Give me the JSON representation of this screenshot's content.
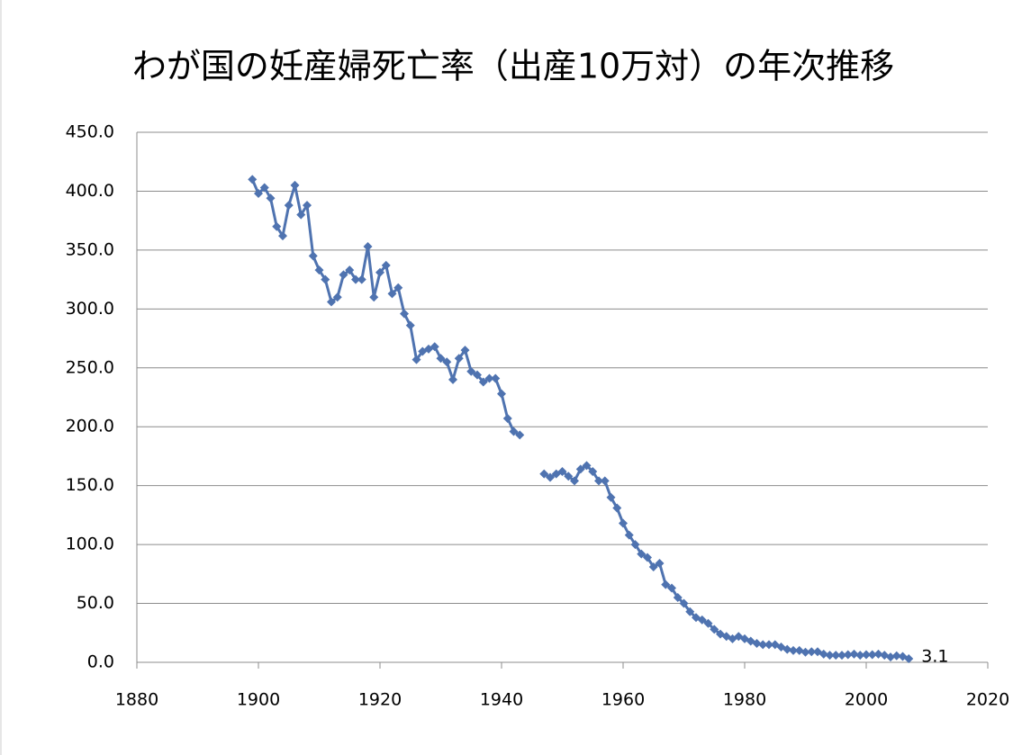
{
  "chart_data": {
    "type": "line",
    "title": "わが国の妊産婦死亡率（出産10万対）の年次推移",
    "x": [
      1899,
      1900,
      1901,
      1902,
      1903,
      1904,
      1905,
      1906,
      1907,
      1908,
      1909,
      1910,
      1911,
      1912,
      1913,
      1914,
      1915,
      1916,
      1917,
      1918,
      1919,
      1920,
      1921,
      1922,
      1923,
      1924,
      1925,
      1926,
      1927,
      1928,
      1929,
      1930,
      1931,
      1932,
      1933,
      1934,
      1935,
      1936,
      1937,
      1938,
      1939,
      1940,
      1941,
      1942,
      1943,
      1944,
      1945,
      1946,
      1947,
      1948,
      1949,
      1950,
      1951,
      1952,
      1953,
      1954,
      1955,
      1956,
      1957,
      1958,
      1959,
      1960,
      1961,
      1962,
      1963,
      1964,
      1965,
      1966,
      1967,
      1968,
      1969,
      1970,
      1971,
      1972,
      1973,
      1974,
      1975,
      1976,
      1977,
      1978,
      1979,
      1980,
      1981,
      1982,
      1983,
      1984,
      1985,
      1986,
      1987,
      1988,
      1989,
      1990,
      1991,
      1992,
      1993,
      1994,
      1995,
      1996,
      1997,
      1998,
      1999,
      2000,
      2001,
      2002,
      2003,
      2004,
      2005,
      2006,
      2007
    ],
    "series": [
      {
        "name": "妊産婦死亡率",
        "color": "#4f73b0",
        "values": [
          410,
          398,
          403,
          394,
          370,
          362,
          388,
          405,
          380,
          388,
          345,
          333,
          325,
          306,
          310,
          329,
          333,
          325,
          325,
          353,
          310,
          331,
          337,
          313,
          318,
          296,
          286,
          257,
          264,
          266,
          268,
          258,
          255,
          240,
          258,
          265,
          247,
          244,
          238,
          241,
          241,
          228,
          207,
          196,
          193,
          null,
          null,
          null,
          160,
          157,
          160,
          162,
          158,
          154,
          164,
          167,
          162,
          154,
          154,
          140,
          131,
          118,
          108,
          100,
          92,
          89,
          81,
          84,
          66,
          63,
          55,
          50,
          43,
          38,
          36,
          33,
          28,
          24,
          22,
          20,
          22,
          20,
          18,
          16,
          15,
          15,
          15,
          13,
          11,
          10,
          10,
          8.6,
          9,
          9,
          7,
          6,
          6,
          6,
          6.5,
          7,
          6,
          6.5,
          6.5,
          7,
          6,
          4.5,
          5.5,
          5,
          3.1
        ]
      }
    ],
    "xlim": [
      1880,
      2020
    ],
    "xticks": [
      1880,
      1900,
      1920,
      1940,
      1960,
      1980,
      2000,
      2020
    ],
    "ylim": [
      0,
      450
    ],
    "yticks": [
      {
        "value": 0,
        "label": "0.0"
      },
      {
        "value": 50,
        "label": "50.0"
      },
      {
        "value": 100,
        "label": "100.0"
      },
      {
        "value": 150,
        "label": "150.0"
      },
      {
        "value": 200,
        "label": "200.0"
      },
      {
        "value": 250,
        "label": "250.0"
      },
      {
        "value": 300,
        "label": "300.0"
      },
      {
        "value": 350,
        "label": "350.0"
      },
      {
        "value": 400,
        "label": "400.0"
      },
      {
        "value": 450,
        "label": "450.0"
      }
    ],
    "grid": true
  }
}
